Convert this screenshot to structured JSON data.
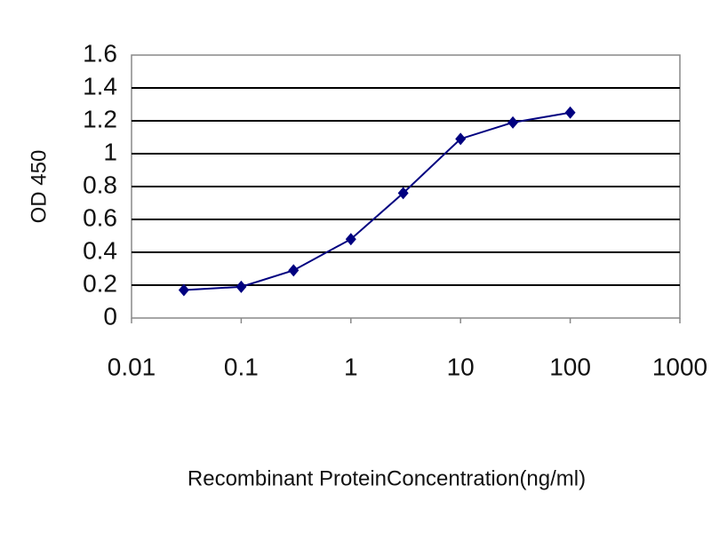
{
  "chart_data": {
    "type": "line",
    "x_label": "Recombinant ProteinConcentration(ng/ml)",
    "y_label": "OD 450",
    "x": [
      0.03,
      0.1,
      0.3,
      1,
      3,
      10,
      30,
      100
    ],
    "series": [
      {
        "color": "#000080",
        "values": [
          0.17,
          0.19,
          0.29,
          0.48,
          0.76,
          1.09,
          1.19,
          1.25
        ]
      }
    ],
    "xscale": "log",
    "xlim": [
      0.01,
      1000
    ],
    "xticks": [
      0.01,
      0.1,
      1,
      10,
      100,
      1000
    ],
    "ylim": [
      0,
      1.6
    ],
    "yticks": [
      0,
      0.2,
      0.4,
      0.6,
      0.8,
      1,
      1.2,
      1.4,
      1.6
    ],
    "grid": true
  }
}
